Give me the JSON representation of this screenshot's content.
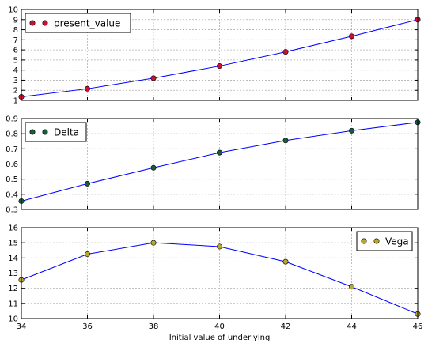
{
  "chart_data": [
    {
      "type": "line",
      "marker": "circle",
      "x": [
        34,
        36,
        38,
        40,
        42,
        44,
        46
      ],
      "series": [
        {
          "name": "present_value",
          "values": [
            1.35,
            2.15,
            3.2,
            4.4,
            5.8,
            7.35,
            9.0
          ],
          "color": "#cc1133"
        }
      ],
      "xlim": [
        34,
        46
      ],
      "ylim": [
        1,
        10
      ],
      "yticks": [
        "1",
        "2",
        "3",
        "4",
        "5",
        "6",
        "7",
        "8",
        "9",
        "10"
      ],
      "xticks": [],
      "legend": "top-left",
      "grid": true,
      "line_color": "#0000ff"
    },
    {
      "type": "line",
      "marker": "circle",
      "x": [
        34,
        36,
        38,
        40,
        42,
        44,
        46
      ],
      "series": [
        {
          "name": "Delta",
          "values": [
            0.355,
            0.47,
            0.575,
            0.675,
            0.755,
            0.82,
            0.875
          ],
          "color": "#1a5b3a"
        }
      ],
      "xlim": [
        34,
        46
      ],
      "ylim": [
        0.3,
        0.9
      ],
      "yticks": [
        "0.3",
        "0.4",
        "0.5",
        "0.6",
        "0.7",
        "0.8",
        "0.9"
      ],
      "xticks": [],
      "legend": "top-left",
      "grid": true,
      "line_color": "#0000ff"
    },
    {
      "type": "line",
      "marker": "circle",
      "x": [
        34,
        36,
        38,
        40,
        42,
        44,
        46
      ],
      "series": [
        {
          "name": "Vega",
          "values": [
            12.55,
            14.25,
            15.0,
            14.75,
            13.75,
            12.1,
            10.3
          ],
          "color": "#b8a830"
        }
      ],
      "xlim": [
        34,
        46
      ],
      "ylim": [
        10,
        16
      ],
      "yticks": [
        "10",
        "11",
        "12",
        "13",
        "14",
        "15",
        "16"
      ],
      "xticks": [
        "34",
        "36",
        "38",
        "40",
        "42",
        "44",
        "46"
      ],
      "xlabel": "Initial value of underlying",
      "legend": "top-right",
      "grid": true,
      "line_color": "#0000ff"
    }
  ]
}
